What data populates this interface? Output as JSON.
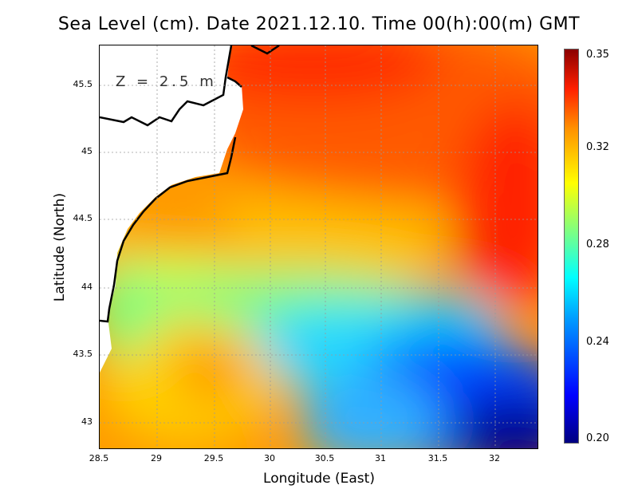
{
  "title": "Sea Level (cm). Date 2021.12.10. Time 00(h):00(m) GMT",
  "depth_label": "Z = 2.5 m",
  "xlabel": "Longitude (East)",
  "ylabel": "Latitude (North)",
  "x_ticks": [
    "28.5",
    "29",
    "29.5",
    "30",
    "30.5",
    "31",
    "31.5",
    "32"
  ],
  "y_ticks": [
    "45.5",
    "45",
    "44.5",
    "44",
    "43.5",
    "43"
  ],
  "colorbar_ticks": [
    "0.35",
    "0.32",
    "0.28",
    "0.24",
    "0.20"
  ],
  "chart_data": {
    "type": "heatmap",
    "title": "Sea Level (cm). Date 2021.12.10. Time 00(h):00(m) GMT",
    "xlabel": "Longitude (East)",
    "ylabel": "Latitude (North)",
    "xlim": [
      28.5,
      32.4
    ],
    "ylim": [
      42.8,
      45.8
    ],
    "colorbar_range": [
      0.2,
      0.355
    ],
    "colorbar_ticks": [
      0.2,
      0.24,
      0.28,
      0.32,
      0.35
    ],
    "field_description_points": [
      {
        "lon": 32.1,
        "lat": 44.3,
        "value": 0.35
      },
      {
        "lon": 31.0,
        "lat": 45.5,
        "value": 0.33
      },
      {
        "lon": 29.4,
        "lat": 43.4,
        "value": 0.31
      },
      {
        "lon": 29.2,
        "lat": 44.4,
        "value": 0.3
      },
      {
        "lon": 30.5,
        "lat": 43.6,
        "value": 0.27
      },
      {
        "lon": 31.7,
        "lat": 43.1,
        "value": 0.21
      },
      {
        "lon": 32.3,
        "lat": 42.9,
        "value": 0.2
      }
    ]
  }
}
